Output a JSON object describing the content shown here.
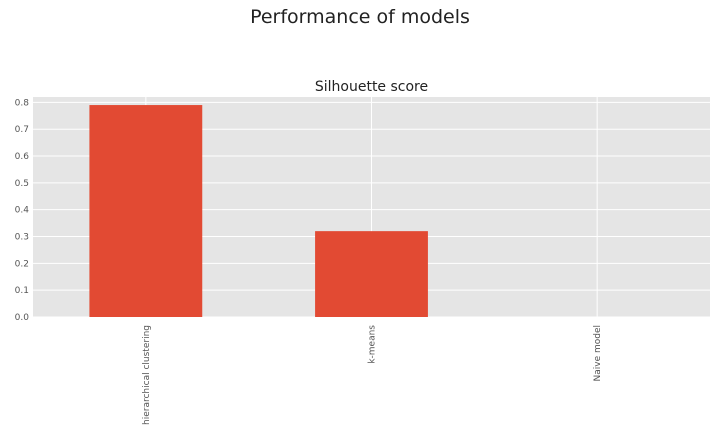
{
  "figure_title": "Performance of models",
  "chart_data": {
    "type": "bar",
    "title": "Silhouette score",
    "categories": [
      "hierarchical clustering",
      "k-means",
      "Naive model"
    ],
    "values": [
      0.79,
      0.32,
      0.0
    ],
    "xlabel": "",
    "ylabel": "",
    "ylim": [
      0,
      0.82
    ],
    "yticks": [
      "0.0",
      "0.1",
      "0.2",
      "0.3",
      "0.4",
      "0.5",
      "0.6",
      "0.7",
      "0.8"
    ],
    "grid": true,
    "bar_color": "#E24A33",
    "background_color": "#E5E5E5"
  }
}
